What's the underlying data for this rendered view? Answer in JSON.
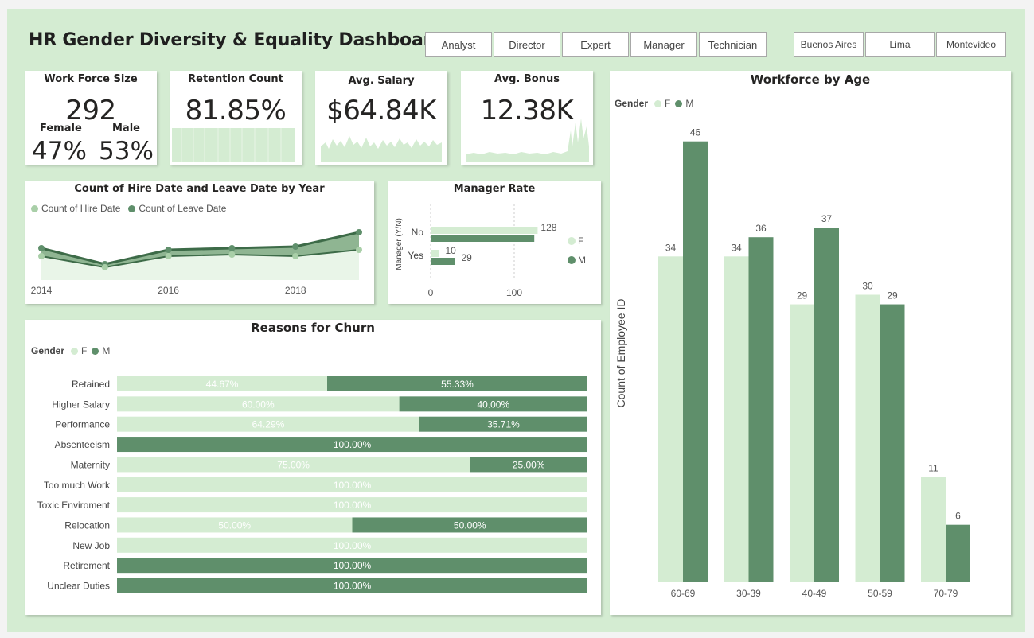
{
  "title": "HR Gender Diversity & Equality Dashboard",
  "colors": {
    "female": "#d4ecd2",
    "male": "#5f8f6b",
    "female_line": "#8fbc8f",
    "male_line": "#3d6b48",
    "canvas": "#d4ecd2"
  },
  "slicers": {
    "roles": [
      "Analyst",
      "Director",
      "Expert",
      "Manager",
      "Technician"
    ],
    "cities": [
      "Buenos Aires",
      "Lima",
      "Montevideo"
    ]
  },
  "kpis": {
    "workforce": {
      "title": "Work Force Size",
      "value": "292",
      "female_label": "Female",
      "male_label": "Male",
      "female_pct": "47%",
      "male_pct": "53%"
    },
    "retention": {
      "title": "Retention Count",
      "value": "81.85%"
    },
    "salary": {
      "title": "Avg. Salary",
      "value": "$64.84K"
    },
    "bonus": {
      "title": "Avg. Bonus",
      "value": "12.38K"
    }
  },
  "chart_data": [
    {
      "id": "hire_leave",
      "type": "line",
      "title": "Count of Hire Date and Leave Date by Year",
      "x": [
        2014,
        2015,
        2016,
        2017,
        2018,
        2019
      ],
      "x_ticks": [
        "2014",
        "2016",
        "2018"
      ],
      "series": [
        {
          "name": "Count of Hire Date",
          "values": [
            45,
            38,
            45,
            46,
            45,
            49
          ]
        },
        {
          "name": "Count of Leave Date",
          "values": [
            50,
            40,
            49,
            50,
            51,
            60
          ]
        }
      ]
    },
    {
      "id": "manager_rate",
      "type": "bar",
      "orientation": "horizontal",
      "title": "Manager Rate",
      "ylabel": "Manager (Y/N)",
      "categories": [
        "No",
        "Yes"
      ],
      "x_ticks": [
        "0",
        "100"
      ],
      "series": [
        {
          "name": "F",
          "values": [
            128,
            10
          ]
        },
        {
          "name": "M",
          "values": [
            124,
            29
          ]
        }
      ],
      "value_labels": [
        "128",
        "10",
        "29"
      ]
    },
    {
      "id": "churn",
      "type": "bar",
      "orientation": "horizontal-stacked-100",
      "title": "Reasons for Churn",
      "legend_title": "Gender",
      "categories": [
        "Retained",
        "Higher Salary",
        "Performance",
        "Absenteeism",
        "Maternity",
        "Too much Work",
        "Toxic Enviroment",
        "Relocation",
        "New Job",
        "Retirement",
        "Unclear Duties"
      ],
      "series": [
        {
          "name": "F",
          "values": [
            44.67,
            60.0,
            64.29,
            0,
            75.0,
            100.0,
            100.0,
            50.0,
            100.0,
            0,
            0
          ]
        },
        {
          "name": "M",
          "values": [
            55.33,
            40.0,
            35.71,
            100.0,
            25.0,
            0,
            0,
            50.0,
            0,
            100.0,
            100.0
          ]
        }
      ]
    },
    {
      "id": "age",
      "type": "bar",
      "title": "Workforce by Age",
      "legend_title": "Gender",
      "ylabel": "Count of Employee ID",
      "categories": [
        "60-69",
        "30-39",
        "40-49",
        "50-59",
        "70-79"
      ],
      "series": [
        {
          "name": "F",
          "values": [
            34,
            34,
            29,
            30,
            11
          ]
        },
        {
          "name": "M",
          "values": [
            46,
            36,
            37,
            29,
            6
          ]
        }
      ]
    }
  ]
}
